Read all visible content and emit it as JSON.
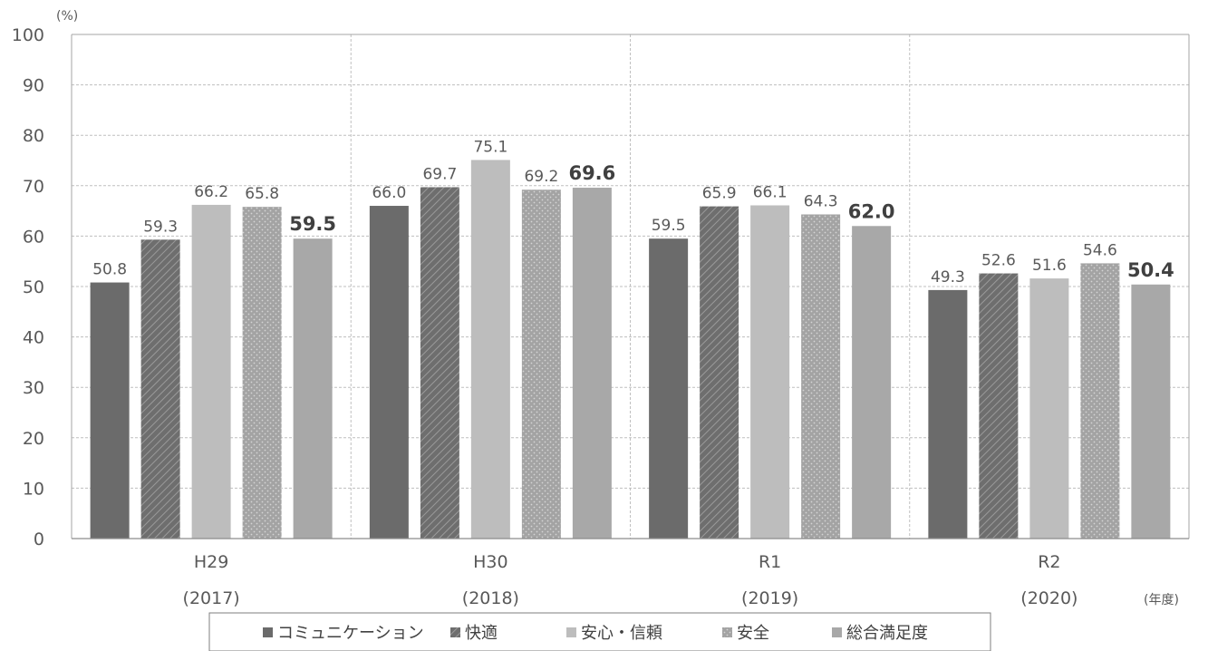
{
  "chart_data": {
    "type": "bar",
    "y_unit_label": "(%)",
    "x_unit_label": "(年度)",
    "ylim": [
      0,
      100
    ],
    "y_ticks": [
      0,
      10,
      20,
      30,
      40,
      50,
      60,
      70,
      80,
      90,
      100
    ],
    "grid": true,
    "legend_position": "bottom",
    "categories": [
      {
        "label": "H29",
        "sublabel": "(2017)"
      },
      {
        "label": "H30",
        "sublabel": "(2018)"
      },
      {
        "label": "R1",
        "sublabel": "(2019)"
      },
      {
        "label": "R2",
        "sublabel": "(2020)"
      }
    ],
    "series": [
      {
        "name": "コミュニケーション",
        "values": [
          50.8,
          66.0,
          59.5,
          49.3
        ],
        "color": "#6b6b6b",
        "pattern": "solid",
        "bold_labels": false
      },
      {
        "name": "快適",
        "values": [
          59.3,
          69.7,
          65.9,
          52.6
        ],
        "color": "#6e6e6e",
        "pattern": "hatch",
        "bold_labels": false
      },
      {
        "name": "安心・信頼",
        "values": [
          66.2,
          75.1,
          66.1,
          51.6
        ],
        "color": "#bdbdbd",
        "pattern": "solid",
        "bold_labels": false
      },
      {
        "name": "安全",
        "values": [
          65.8,
          69.2,
          64.3,
          54.6
        ],
        "color": "#a3a3a3",
        "pattern": "dots",
        "bold_labels": false
      },
      {
        "name": "総合満足度",
        "values": [
          59.5,
          69.6,
          62.0,
          50.4
        ],
        "color": "#a8a8a8",
        "pattern": "solid",
        "bold_labels": true
      }
    ]
  }
}
